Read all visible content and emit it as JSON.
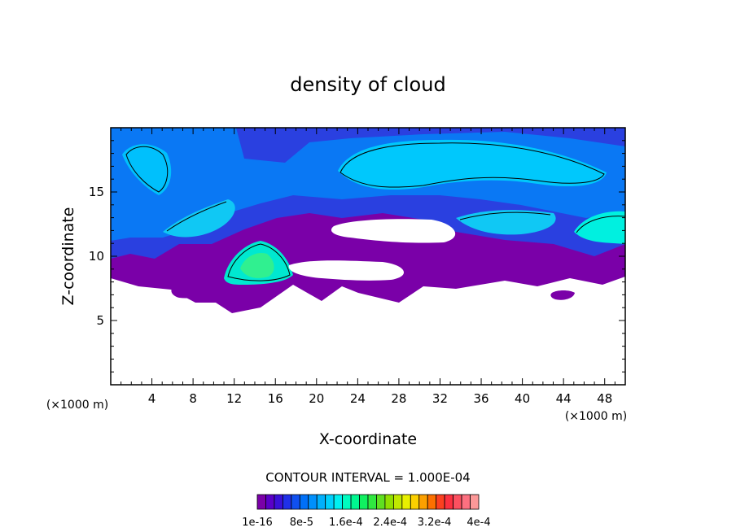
{
  "chart_data": {
    "type": "heatmap",
    "title": "density of cloud",
    "xlabel": "X-coordinate",
    "ylabel": "Z-coordinate",
    "x_unit": "(×1000 m)",
    "y_unit": "(×1000 m)",
    "xlim": [
      0,
      50
    ],
    "ylim": [
      0,
      20
    ],
    "x_ticks": [
      4,
      8,
      12,
      16,
      20,
      24,
      28,
      32,
      36,
      40,
      44,
      48
    ],
    "y_ticks": [
      5,
      10,
      15
    ],
    "contour_interval_label": "CONTOUR INTERVAL = 1.000E-04",
    "colorbar": {
      "labels": [
        "1e-16",
        "8e-5",
        "1.6e-4",
        "2.4e-4",
        "3.2e-4",
        "4e-4"
      ],
      "colors": [
        "#7a00a8",
        "#5a00c8",
        "#3a10d8",
        "#2030e8",
        "#1050f0",
        "#0070f8",
        "#0090fc",
        "#00b0fc",
        "#00d0fc",
        "#00f0f0",
        "#00fcc0",
        "#00f890",
        "#10f060",
        "#30e840",
        "#60e020",
        "#90e000",
        "#c0e800",
        "#e8f000",
        "#fcd000",
        "#fca000",
        "#fc7000",
        "#fc4020",
        "#fc3040",
        "#fc5060",
        "#fc7080",
        "#fc9898"
      ]
    },
    "grid": false
  }
}
